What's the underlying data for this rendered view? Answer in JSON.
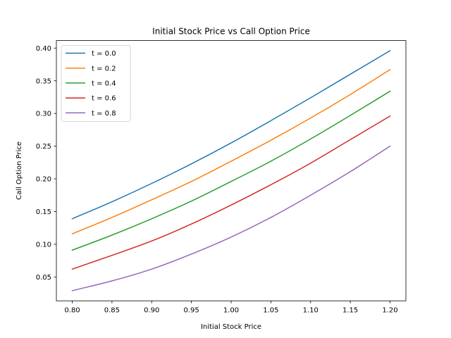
{
  "chart_data": {
    "type": "line",
    "title": "Initial Stock Price vs Call Option Price",
    "xlabel": "Initial Stock Price",
    "ylabel": "Call Option Price",
    "xlim": [
      0.78,
      1.22
    ],
    "ylim": [
      0.0135,
      0.4115
    ],
    "xticks": [
      0.8,
      0.85,
      0.9,
      0.95,
      1.0,
      1.05,
      1.1,
      1.15,
      1.2
    ],
    "xtick_labels": [
      "0.80",
      "0.85",
      "0.90",
      "0.95",
      "1.00",
      "1.05",
      "1.10",
      "1.15",
      "1.20"
    ],
    "yticks": [
      0.05,
      0.1,
      0.15,
      0.2,
      0.25,
      0.3,
      0.35,
      0.4
    ],
    "ytick_labels": [
      "0.05",
      "0.10",
      "0.15",
      "0.20",
      "0.25",
      "0.30",
      "0.35",
      "0.40"
    ],
    "grid": false,
    "legend_position": "top-left",
    "x": [
      0.8,
      0.85,
      0.9,
      0.95,
      1.0,
      1.05,
      1.1,
      1.15,
      1.2
    ],
    "series": [
      {
        "name": "t = 0.0",
        "color": "#1f77b4",
        "values": [
          0.139,
          0.165,
          0.193,
          0.223,
          0.255,
          0.289,
          0.324,
          0.36,
          0.396
        ]
      },
      {
        "name": "t = 0.2",
        "color": "#ff7f0e",
        "values": [
          0.116,
          0.141,
          0.168,
          0.196,
          0.227,
          0.259,
          0.293,
          0.329,
          0.367
        ]
      },
      {
        "name": "t = 0.4",
        "color": "#2ca02c",
        "values": [
          0.091,
          0.114,
          0.139,
          0.166,
          0.196,
          0.227,
          0.261,
          0.297,
          0.334
        ]
      },
      {
        "name": "t = 0.6",
        "color": "#d62728",
        "values": [
          0.062,
          0.083,
          0.105,
          0.131,
          0.16,
          0.191,
          0.224,
          0.26,
          0.296
        ]
      },
      {
        "name": "t = 0.8",
        "color": "#9467bd",
        "values": [
          0.029,
          0.044,
          0.062,
          0.085,
          0.111,
          0.141,
          0.175,
          0.211,
          0.25
        ]
      }
    ]
  }
}
